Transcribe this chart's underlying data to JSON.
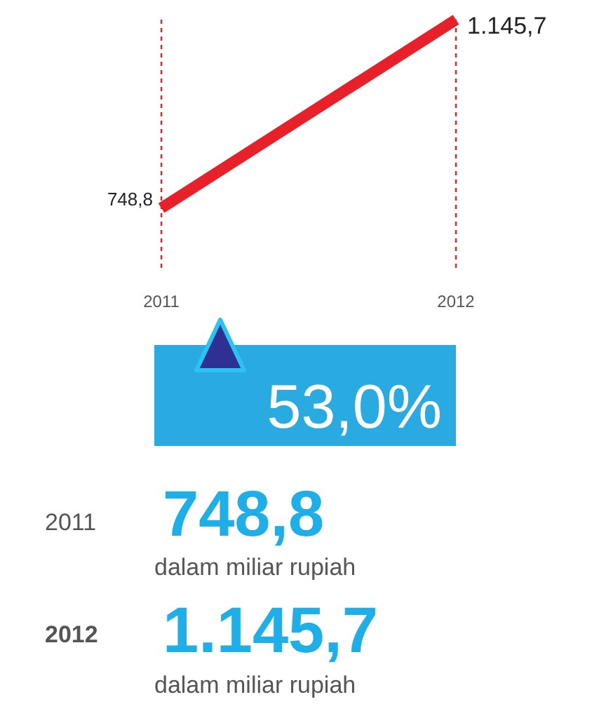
{
  "chart_data": {
    "type": "line",
    "categories": [
      "2011",
      "2012"
    ],
    "series": [
      {
        "color": "#e8202a",
        "values": [
          748.8,
          1145.7
        ],
        "value_labels": [
          "748,8",
          "1.145,7"
        ]
      }
    ],
    "marker": "none",
    "ref_lines": [
      {
        "axis": "x",
        "value": "2011",
        "color": "#e8202a",
        "line_style": "dashed"
      },
      {
        "axis": "x",
        "value": "2012",
        "color": "#e8202a",
        "line_style": "dashed"
      }
    ],
    "annotations": [
      "53,0%",
      "2011",
      "748,8",
      "dalam miliar rupiah",
      "2012",
      "1.145,7",
      "dalam miliar rupiah"
    ]
  }
}
